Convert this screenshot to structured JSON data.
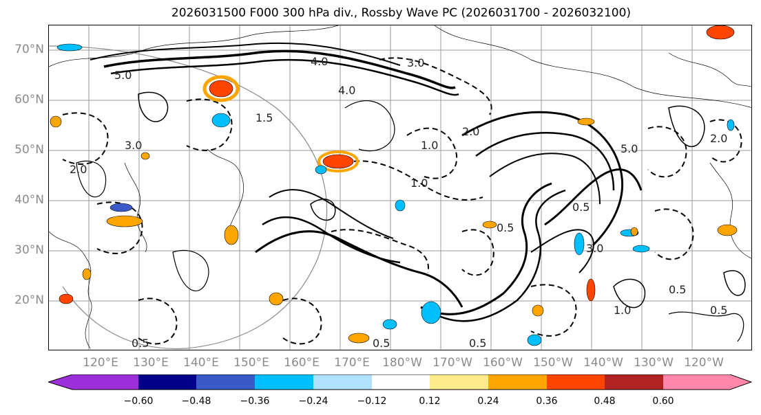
{
  "title": "2026031500 F000 300 hPa div., Rossby Wave PC (2026031700 - 2026032100)",
  "lat_labels": [
    "70°N",
    "60°N",
    "50°N",
    "40°N",
    "30°N",
    "20°N"
  ],
  "lon_labels": [
    "120°E",
    "130°E",
    "140°E",
    "150°E",
    "160°E",
    "170°E",
    "180°W",
    "170°W",
    "160°W",
    "150°W",
    "140°W",
    "130°W",
    "120°W"
  ],
  "contour_labels": [
    "5.0",
    "4.0",
    "4.0",
    "3.0",
    "2.0",
    "1.0",
    "0.5",
    "0.5",
    "0.5",
    "5.0",
    "3.0",
    "2.0",
    "1.0",
    "0.5",
    "0.5",
    "1.5",
    "2.0",
    "3.0",
    "0.5",
    "0.5",
    "1.0"
  ],
  "colorbar": {
    "colors": [
      "#9b30d9",
      "#00008b",
      "#3a5ac8",
      "#00bfff",
      "#b0e2ff",
      "#ffffff",
      "#ffeb8c",
      "#ffa500",
      "#ff4500",
      "#b22222",
      "#ff88aa"
    ],
    "tick_labels": [
      "−0.60",
      "−0.48",
      "−0.36",
      "−0.24",
      "−0.12",
      "0.12",
      "0.24",
      "0.36",
      "0.48",
      "0.60"
    ]
  }
}
